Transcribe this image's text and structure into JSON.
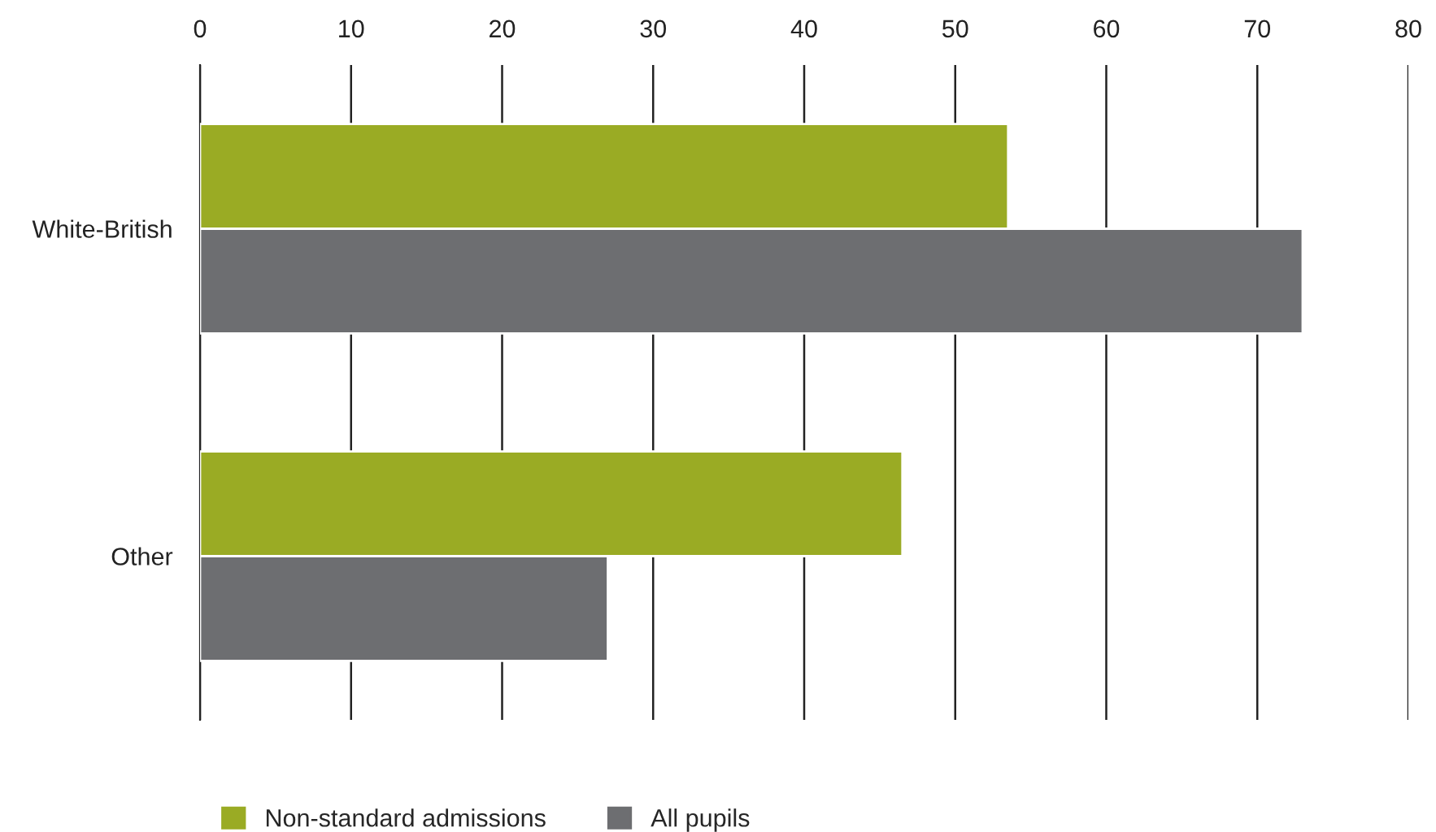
{
  "chart_data": {
    "type": "bar",
    "orientation": "horizontal",
    "categories": [
      "White-British",
      "Other"
    ],
    "series": [
      {
        "name": "Non-standard admissions",
        "color": "#9aab24",
        "values": [
          53.5,
          46.5
        ]
      },
      {
        "name": "All pupils",
        "color": "#6d6e71",
        "values": [
          73,
          27
        ]
      }
    ],
    "xlim": [
      0,
      80
    ],
    "xticks": [
      0,
      10,
      20,
      30,
      40,
      50,
      60,
      70,
      80
    ],
    "grid": "x",
    "legend": "bottom left"
  }
}
